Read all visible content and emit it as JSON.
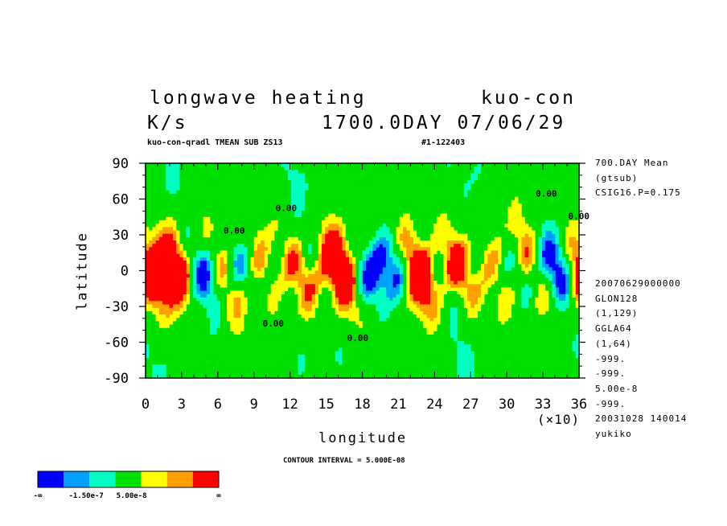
{
  "header": {
    "title_left": "longwave heating",
    "title_right": "kuo-con",
    "units": "K/s",
    "time": "1700.0DAY 07/06/29",
    "subtitle": "kuo-con-qradl TMEAN SUB ZS13",
    "run_id": "#1-122403"
  },
  "right_info": {
    "top": [
      "700.DAY Mean",
      "(gtsub)",
      "CSIG16.P=0.175"
    ],
    "bottom": [
      "20070629000000",
      "GLON128",
      "(1,129)",
      "GGLA64",
      "(1,64)",
      "-999.",
      "-999.",
      "5.00e-8",
      "-999.",
      "20031028 140014",
      "yukiko"
    ]
  },
  "footer": {
    "contour_interval": "CONTOUR INTERVAL = 5.000E-08",
    "x_multiplier": "(×10)"
  },
  "colorbar": {
    "colors": [
      "#0000ff",
      "#00a0ff",
      "#00ffc0",
      "#00e000",
      "#ffff00",
      "#ffa000",
      "#ff0000"
    ],
    "labels": [
      "-∞",
      "-1.50e-7",
      "5.00e-8",
      "∞"
    ]
  },
  "chart_data": {
    "type": "heatmap",
    "title": "longwave heating",
    "xlabel": "longitude",
    "ylabel": "latitude",
    "x_ticks": [
      "0",
      "3",
      "6",
      "9",
      "12",
      "15",
      "18",
      "21",
      "24",
      "27",
      "30",
      "33",
      "36"
    ],
    "y_ticks": [
      "90",
      "60",
      "30",
      "0",
      "-30",
      "-60",
      "-90"
    ],
    "xlim": [
      0,
      36
    ],
    "ylim": [
      -90,
      90
    ],
    "contour_labels": [
      "0.00",
      "0.00",
      "0.00",
      "0.00",
      "0.00",
      "0.00"
    ],
    "levels": [
      -1.5e-07,
      -1e-07,
      -5e-08,
      0,
      5e-08,
      1e-07
    ]
  }
}
